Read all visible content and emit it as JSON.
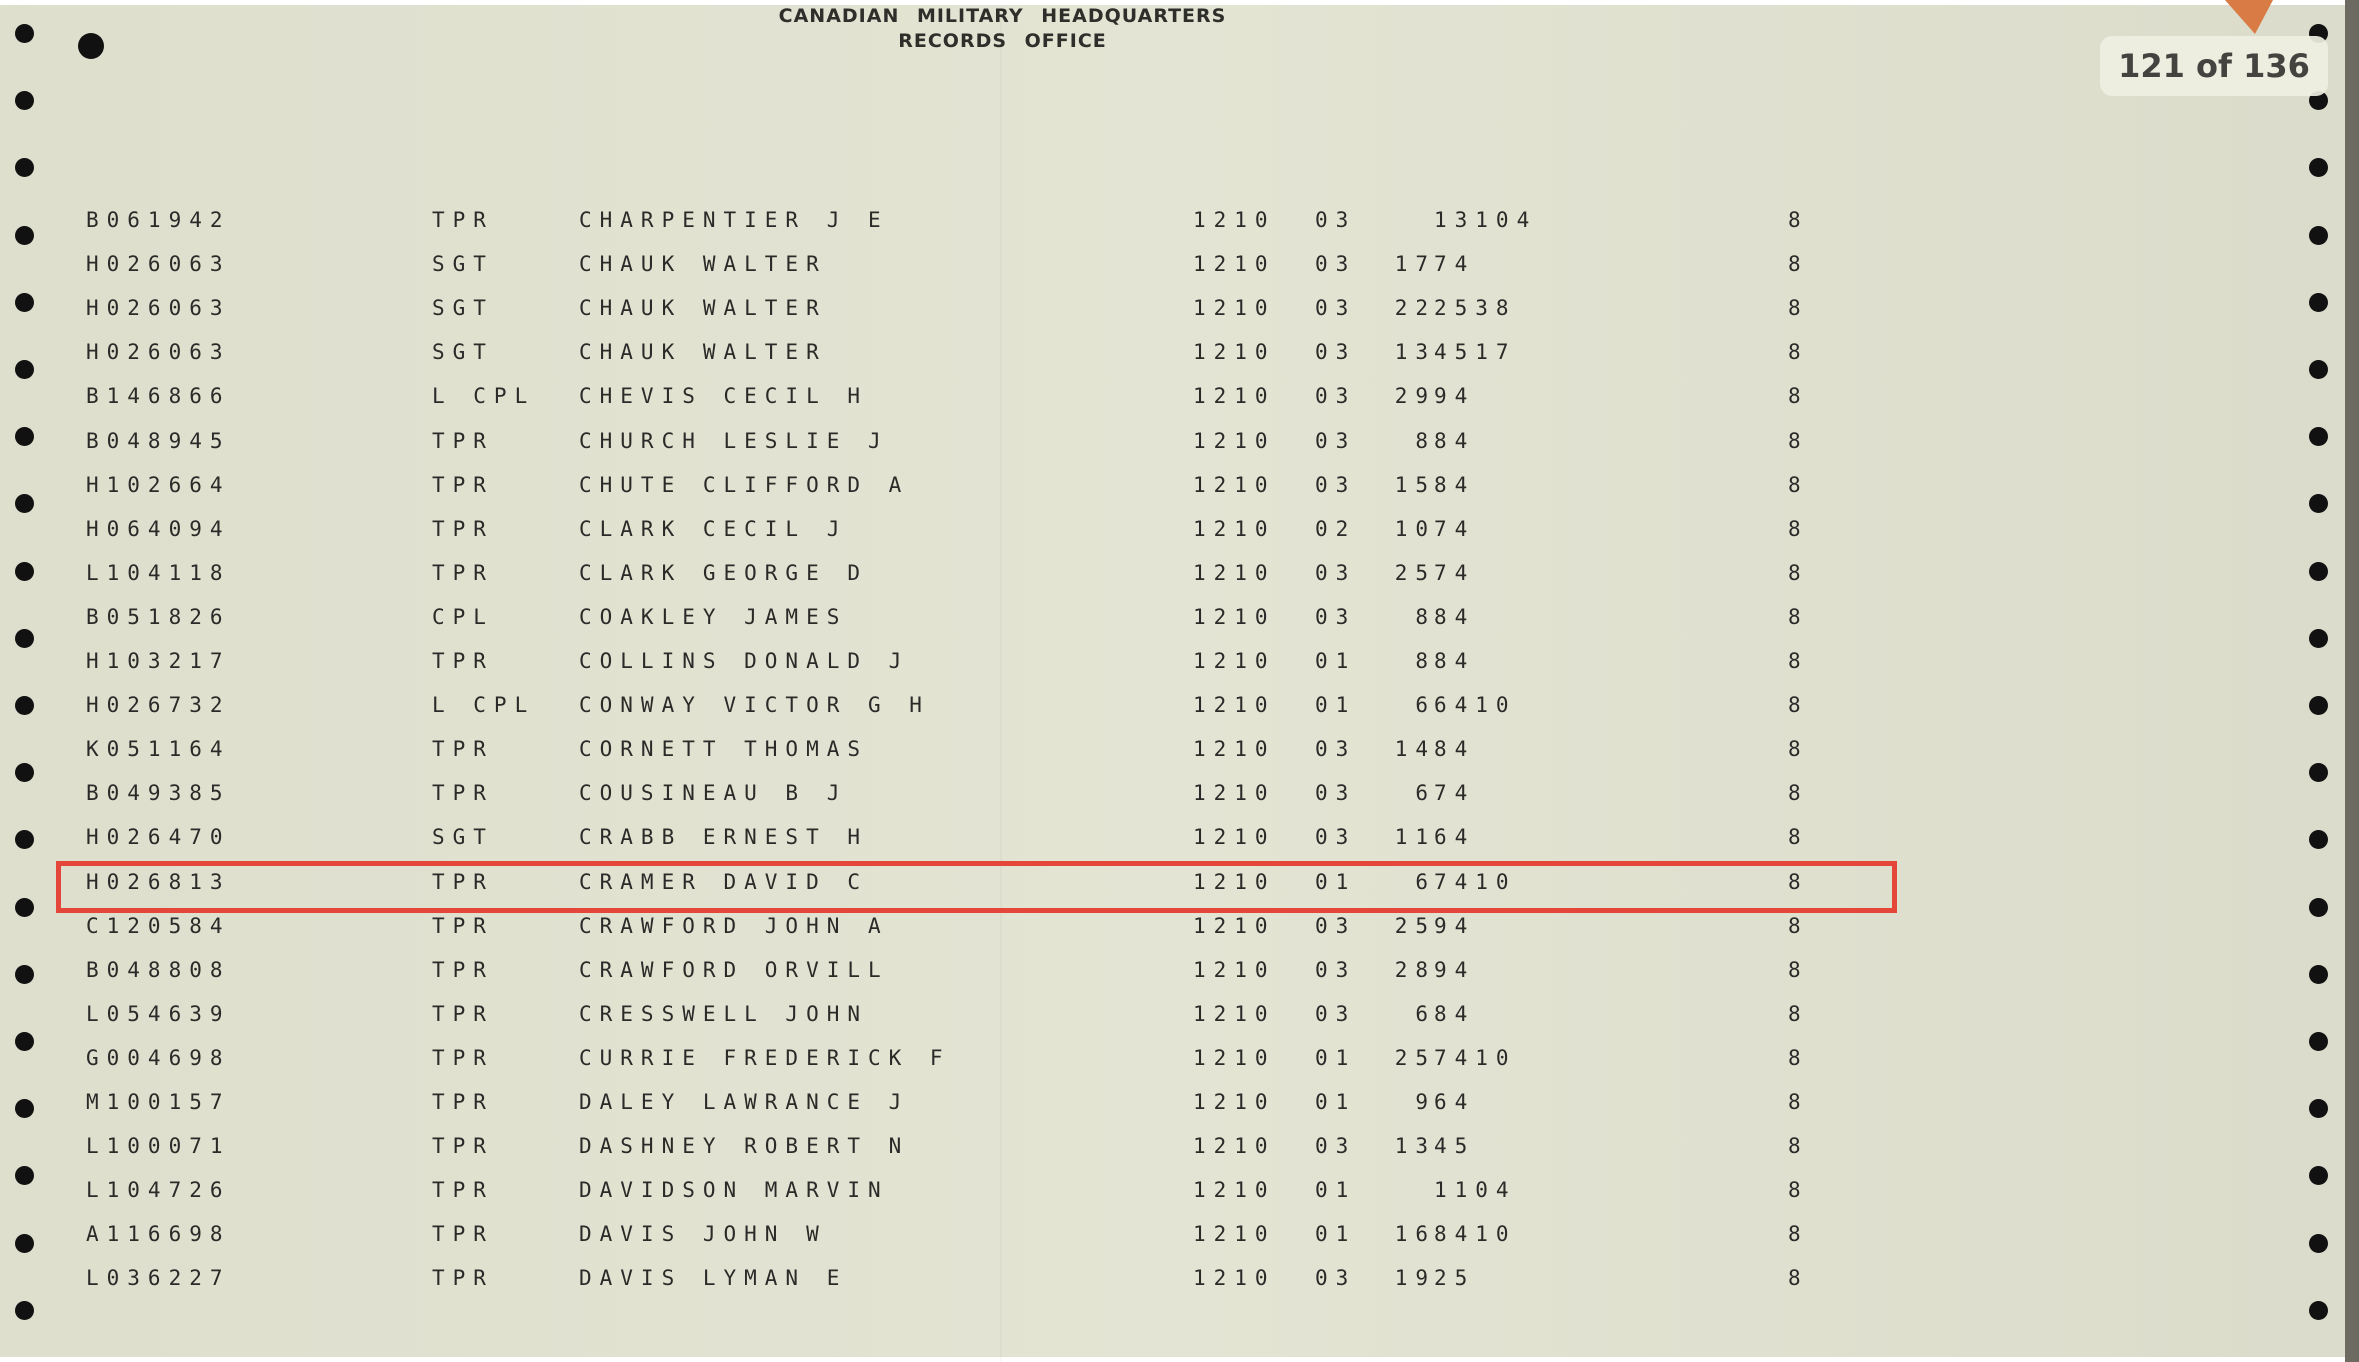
{
  "document": {
    "header_line1": "CANADIAN  MILITARY  HEADQUARTERS",
    "header_line2": "RECORDS  OFFICE"
  },
  "viewer": {
    "page_counter": "121 of 136",
    "current_page": 121,
    "total_pages": 136,
    "highlight_color": "#e4473a"
  },
  "records": [
    {
      "service_no": "B061942",
      "rank": "TPR",
      "name": "CHARPENTIER J E",
      "unit": "1210",
      "m": "03",
      "day": "",
      "code": "13104",
      "s": "8"
    },
    {
      "service_no": "H026063",
      "rank": "SGT",
      "name": "CHAUK WALTER",
      "unit": "1210",
      "m": "03",
      "day": "17",
      "code": "74",
      "s": "8"
    },
    {
      "service_no": "H026063",
      "rank": "SGT",
      "name": "CHAUK WALTER",
      "unit": "1210",
      "m": "03",
      "day": "22",
      "code": "2538",
      "s": "8"
    },
    {
      "service_no": "H026063",
      "rank": "SGT",
      "name": "CHAUK WALTER",
      "unit": "1210",
      "m": "03",
      "day": "13",
      "code": "4517",
      "s": "8"
    },
    {
      "service_no": "B146866",
      "rank": "L CPL",
      "name": "CHEVIS CECIL H",
      "unit": "1210",
      "m": "03",
      "day": "29",
      "code": "94",
      "s": "8"
    },
    {
      "service_no": "B048945",
      "rank": "TPR",
      "name": "CHURCH LESLIE J",
      "unit": "1210",
      "m": "03",
      "day": "8",
      "code": "84",
      "s": "8"
    },
    {
      "service_no": "H102664",
      "rank": "TPR",
      "name": "CHUTE CLIFFORD A",
      "unit": "1210",
      "m": "03",
      "day": "15",
      "code": "84",
      "s": "8"
    },
    {
      "service_no": "H064094",
      "rank": "TPR",
      "name": "CLARK CECIL J",
      "unit": "1210",
      "m": "02",
      "day": "10",
      "code": "74",
      "s": "8"
    },
    {
      "service_no": "L104118",
      "rank": "TPR",
      "name": "CLARK GEORGE D",
      "unit": "1210",
      "m": "03",
      "day": "25",
      "code": "74",
      "s": "8"
    },
    {
      "service_no": "B051826",
      "rank": "CPL",
      "name": "COAKLEY JAMES",
      "unit": "1210",
      "m": "03",
      "day": "8",
      "code": "84",
      "s": "8"
    },
    {
      "service_no": "H103217",
      "rank": "TPR",
      "name": "COLLINS DONALD J",
      "unit": "1210",
      "m": "01",
      "day": "8",
      "code": "84",
      "s": "8"
    },
    {
      "service_no": "H026732",
      "rank": "L CPL",
      "name": "CONWAY VICTOR G H",
      "unit": "1210",
      "m": "01",
      "day": "6",
      "code": "6410",
      "s": "8"
    },
    {
      "service_no": "K051164",
      "rank": "TPR",
      "name": "CORNETT THOMAS",
      "unit": "1210",
      "m": "03",
      "day": "14",
      "code": "84",
      "s": "8"
    },
    {
      "service_no": "B049385",
      "rank": "TPR",
      "name": "COUSINEAU B J",
      "unit": "1210",
      "m": "03",
      "day": "6",
      "code": "74",
      "s": "8"
    },
    {
      "service_no": "H026470",
      "rank": "SGT",
      "name": "CRABB ERNEST H",
      "unit": "1210",
      "m": "03",
      "day": "11",
      "code": "64",
      "s": "8"
    },
    {
      "service_no": "H026813",
      "rank": "TPR",
      "name": "CRAMER DAVID C",
      "unit": "1210",
      "m": "01",
      "day": "6",
      "code": "7410",
      "s": "8",
      "highlighted": true
    },
    {
      "service_no": "C120584",
      "rank": "TPR",
      "name": "CRAWFORD JOHN A",
      "unit": "1210",
      "m": "03",
      "day": "25",
      "code": "94",
      "s": "8"
    },
    {
      "service_no": "B048808",
      "rank": "TPR",
      "name": "CRAWFORD ORVILL",
      "unit": "1210",
      "m": "03",
      "day": "28",
      "code": "94",
      "s": "8"
    },
    {
      "service_no": "L054639",
      "rank": "TPR",
      "name": "CRESSWELL JOHN",
      "unit": "1210",
      "m": "03",
      "day": "6",
      "code": "84",
      "s": "8"
    },
    {
      "service_no": "G004698",
      "rank": "TPR",
      "name": "CURRIE FREDERICK F",
      "unit": "1210",
      "m": "01",
      "day": "25",
      "code": "7410",
      "s": "8"
    },
    {
      "service_no": "M100157",
      "rank": "TPR",
      "name": "DALEY LAWRANCE J",
      "unit": "1210",
      "m": "01",
      "day": "9",
      "code": "64",
      "s": "8"
    },
    {
      "service_no": "L100071",
      "rank": "TPR",
      "name": "DASHNEY ROBERT N",
      "unit": "1210",
      "m": "03",
      "day": "13",
      "code": "45",
      "s": "8"
    },
    {
      "service_no": "L104726",
      "rank": "TPR",
      "name": "DAVIDSON MARVIN",
      "unit": "1210",
      "m": "01",
      "day": "",
      "code": "1104",
      "s": "8"
    },
    {
      "service_no": "A116698",
      "rank": "TPR",
      "name": "DAVIS JOHN W",
      "unit": "1210",
      "m": "01",
      "day": "16",
      "code": "8410",
      "s": "8"
    },
    {
      "service_no": "L036227",
      "rank": "TPR",
      "name": "DAVIS LYMAN E",
      "unit": "1210",
      "m": "03",
      "day": "19",
      "code": "25",
      "s": "8"
    }
  ]
}
